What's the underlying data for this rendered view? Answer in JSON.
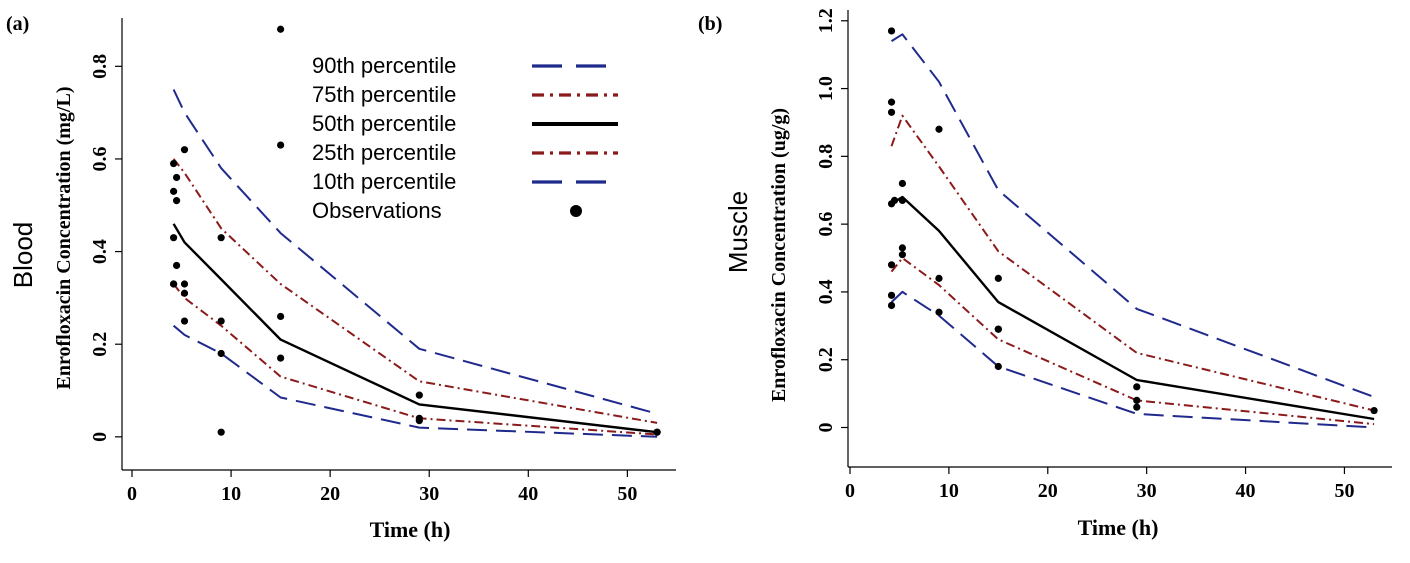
{
  "chart_data": [
    {
      "type": "line",
      "panel_label": "(a)",
      "tissue_label": "Blood",
      "ylabel": "Enrofloxacin Concentration (mg/L)",
      "xlabel": "Time (h)",
      "xlim": [
        0,
        54
      ],
      "ylim": [
        -0.05,
        0.9
      ],
      "x_ticks": [
        0,
        10,
        20,
        30,
        40,
        50
      ],
      "y_ticks": [
        0,
        0.2,
        0.4,
        0.6,
        0.8
      ],
      "x_tick_labels": [
        "0",
        "10",
        "20",
        "30",
        "40",
        "50"
      ],
      "y_tick_labels": [
        "0",
        "0.2",
        "0.4",
        "0.6",
        "0.8"
      ],
      "legend": {
        "placement": "top-right",
        "entries": [
          {
            "label": "90th percentile",
            "key": "p90"
          },
          {
            "label": "75th percentile",
            "key": "p75"
          },
          {
            "label": "50th percentile",
            "key": "p50"
          },
          {
            "label": "25th percentile",
            "key": "p25"
          },
          {
            "label": "10th percentile",
            "key": "p10"
          },
          {
            "label": "Observations",
            "key": "obs"
          }
        ]
      },
      "series": [
        {
          "key": "p90",
          "color": "#1f2a8c",
          "dash": "long-dash",
          "x": [
            4.2,
            5.3,
            9,
            15,
            29,
            53
          ],
          "values": [
            0.75,
            0.7,
            0.58,
            0.44,
            0.19,
            0.05
          ]
        },
        {
          "key": "p75",
          "color": "#8b1a1a",
          "dash": "dash-dot",
          "x": [
            4.2,
            5.3,
            9,
            15,
            29,
            53
          ],
          "values": [
            0.6,
            0.57,
            0.45,
            0.33,
            0.12,
            0.03
          ]
        },
        {
          "key": "p50",
          "color": "#000000",
          "dash": "solid",
          "x": [
            4.2,
            5.3,
            9,
            15,
            29,
            53
          ],
          "values": [
            0.46,
            0.42,
            0.34,
            0.21,
            0.07,
            0.01
          ]
        },
        {
          "key": "p25",
          "color": "#8b1a1a",
          "dash": "dash-dot",
          "x": [
            4.2,
            5.3,
            9,
            15,
            29,
            53
          ],
          "values": [
            0.33,
            0.3,
            0.24,
            0.13,
            0.04,
            0.005
          ]
        },
        {
          "key": "p10",
          "color": "#1f2a8c",
          "dash": "long-dash",
          "x": [
            4.2,
            5.3,
            9,
            15,
            29,
            53
          ],
          "values": [
            0.24,
            0.22,
            0.18,
            0.085,
            0.02,
            0.0
          ]
        }
      ],
      "observations": {
        "x": [
          4.2,
          4.2,
          4.2,
          4.5,
          4.5,
          4.2,
          4.5,
          4.2,
          5.3,
          5.3,
          5.3,
          5.3,
          9,
          9,
          9,
          9,
          15,
          15,
          15,
          15,
          29,
          29,
          29,
          53,
          53
        ],
        "y": [
          0.59,
          0.53,
          0.43,
          0.56,
          0.51,
          0.33,
          0.37,
          0.33,
          0.62,
          0.33,
          0.31,
          0.25,
          0.43,
          0.25,
          0.18,
          0.01,
          0.88,
          0.63,
          0.26,
          0.17,
          0.09,
          0.04,
          0.035,
          0.01,
          0.01
        ]
      }
    },
    {
      "type": "line",
      "panel_label": "(b)",
      "tissue_label": "Muscle",
      "ylabel": "Enrofloxacin Concentration (ug/g)",
      "xlabel": "Time (h)",
      "xlim": [
        0,
        54
      ],
      "ylim": [
        -0.09,
        1.22
      ],
      "x_ticks": [
        0,
        10,
        20,
        30,
        40,
        50
      ],
      "y_ticks": [
        0,
        0.2,
        0.4,
        0.6,
        0.8,
        1.0,
        1.2
      ],
      "x_tick_labels": [
        "0",
        "10",
        "20",
        "30",
        "40",
        "50"
      ],
      "y_tick_labels": [
        "0",
        "0.2",
        "0.4",
        "0.6",
        "0.8",
        "1.0",
        "1.2"
      ],
      "series": [
        {
          "key": "p90",
          "color": "#1f2a8c",
          "dash": "long-dash",
          "x": [
            4.2,
            5.3,
            9,
            15,
            29,
            53
          ],
          "values": [
            1.14,
            1.16,
            1.02,
            0.7,
            0.35,
            0.09
          ]
        },
        {
          "key": "p75",
          "color": "#8b1a1a",
          "dash": "dash-dot",
          "x": [
            4.2,
            5.3,
            9,
            15,
            29,
            53
          ],
          "values": [
            0.83,
            0.92,
            0.77,
            0.52,
            0.22,
            0.05
          ]
        },
        {
          "key": "p50",
          "color": "#000000",
          "dash": "solid",
          "x": [
            4.2,
            5.3,
            9,
            15,
            29,
            53
          ],
          "values": [
            0.66,
            0.68,
            0.58,
            0.37,
            0.14,
            0.025
          ]
        },
        {
          "key": "p25",
          "color": "#8b1a1a",
          "dash": "dash-dot",
          "x": [
            4.2,
            5.3,
            9,
            15,
            29,
            53
          ],
          "values": [
            0.46,
            0.5,
            0.42,
            0.26,
            0.08,
            0.01
          ]
        },
        {
          "key": "p10",
          "color": "#1f2a8c",
          "dash": "long-dash",
          "x": [
            4.2,
            5.3,
            9,
            15,
            29,
            53
          ],
          "values": [
            0.37,
            0.4,
            0.33,
            0.18,
            0.04,
            0.0
          ]
        }
      ],
      "observations": {
        "x": [
          4.2,
          4.2,
          4.2,
          4.2,
          4.5,
          4.2,
          4.2,
          4.2,
          5.3,
          5.3,
          5.3,
          5.3,
          9,
          9,
          9,
          15,
          15,
          15,
          15,
          29,
          29,
          29,
          53
        ],
        "y": [
          1.17,
          0.96,
          0.93,
          0.66,
          0.67,
          0.48,
          0.39,
          0.36,
          0.72,
          0.67,
          0.53,
          0.51,
          0.88,
          0.44,
          0.34,
          0.44,
          0.29,
          0.29,
          0.18,
          0.12,
          0.08,
          0.06,
          0.05
        ]
      }
    }
  ]
}
